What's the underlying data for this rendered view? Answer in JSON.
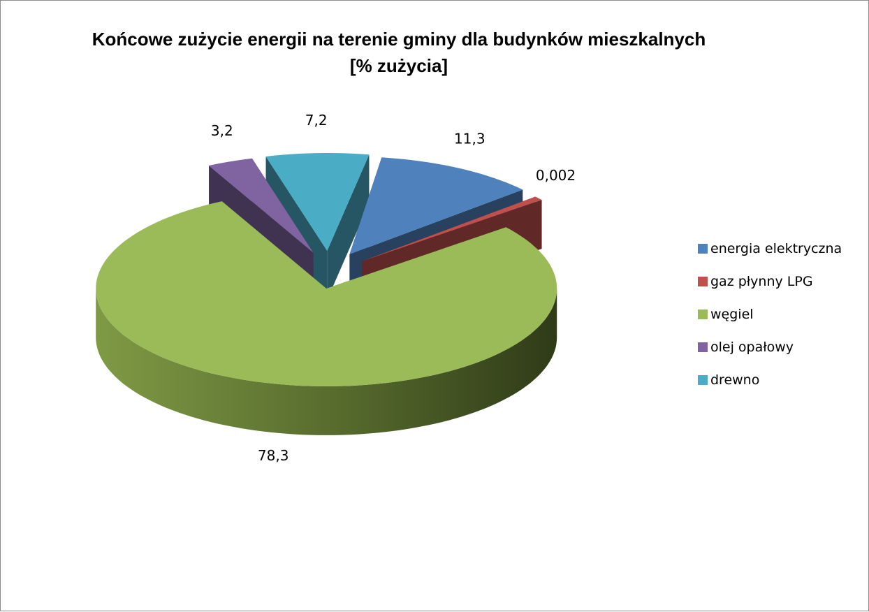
{
  "chart_data": {
    "type": "pie",
    "title": "Końcowe zużycie energii na terenie gminy dla budynków mieszkalnych [% zużycia]",
    "style": "3d-exploded",
    "legend_position": "right",
    "slices": [
      {
        "name": "energia elektryczna",
        "value": 11.3,
        "label": "11,3",
        "color": "#4f81bd"
      },
      {
        "name": "gaz płynny LPG",
        "value": 0.002,
        "label": "0,002",
        "color": "#c0504d"
      },
      {
        "name": "węgiel",
        "value": 78.3,
        "label": "78,3",
        "color": "#9bbb59"
      },
      {
        "name": "olej opałowy",
        "value": 3.2,
        "label": "3,2",
        "color": "#8064a2"
      },
      {
        "name": "drewno",
        "value": 7.2,
        "label": "7,2",
        "color": "#4bacc6"
      }
    ]
  }
}
